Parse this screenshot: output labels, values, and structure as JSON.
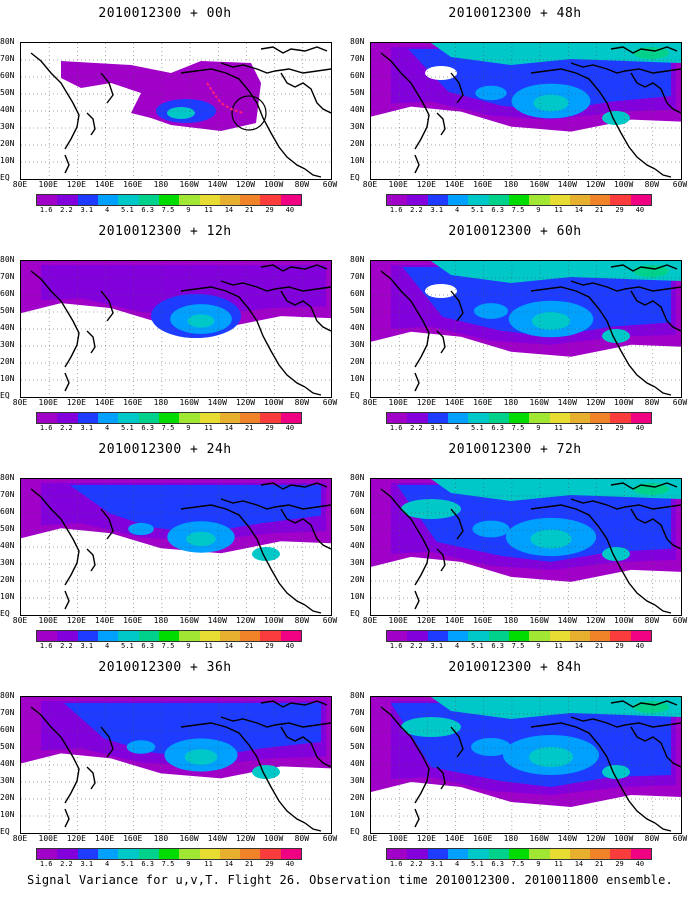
{
  "panels": [
    {
      "title": "2010012300 + 00h",
      "lead": 0
    },
    {
      "title": "2010012300 + 48h",
      "lead": 48
    },
    {
      "title": "2010012300 + 12h",
      "lead": 12
    },
    {
      "title": "2010012300 + 60h",
      "lead": 60
    },
    {
      "title": "2010012300 + 24h",
      "lead": 24
    },
    {
      "title": "2010012300 + 72h",
      "lead": 72
    },
    {
      "title": "2010012300 + 36h",
      "lead": 36
    },
    {
      "title": "2010012300 + 84h",
      "lead": 84
    }
  ],
  "lat_labels": [
    "80N",
    "70N",
    "60N",
    "50N",
    "40N",
    "30N",
    "20N",
    "10N",
    "EQ"
  ],
  "lon_labels": [
    "80E",
    "100E",
    "120E",
    "140E",
    "160E",
    "180",
    "160W",
    "140W",
    "120W",
    "100W",
    "80W",
    "60W"
  ],
  "colorbar": {
    "labels": [
      "1.6",
      "2.2",
      "3.1",
      "4",
      "5.1",
      "6.3",
      "7.5",
      "9",
      "11",
      "14",
      "21",
      "29",
      "40"
    ],
    "colors": [
      "#a000c8",
      "#8200dc",
      "#1e3cff",
      "#00a0ff",
      "#00c8c8",
      "#00d28c",
      "#00dc00",
      "#a0e632",
      "#e6dc32",
      "#e6af2d",
      "#f08228",
      "#fa3c3c",
      "#f00082"
    ]
  },
  "caption": "Signal Variance for u,v,T. Flight 26. Observation time 2010012300. 2010011800 ensemble."
}
